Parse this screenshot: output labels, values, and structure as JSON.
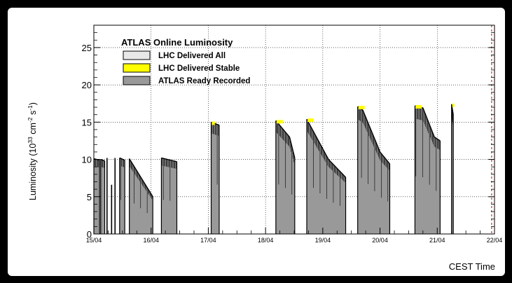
{
  "chart_data": {
    "type": "area",
    "title": "",
    "legend_title": "ATLAS Online Luminosity",
    "legend_position": "top-left",
    "xlabel": "CEST Time",
    "ylabel_main": "Luminosity (10",
    "ylabel_exp1": "33",
    "ylabel_mid": " cm",
    "ylabel_exp2": "-2",
    "ylabel_end": " s",
    "ylabel_exp3": "-1",
    "ylabel_close": ")",
    "xlim": [
      0,
      7
    ],
    "ylim": [
      0,
      28
    ],
    "yticks": [
      0,
      5,
      10,
      15,
      20,
      25
    ],
    "xtick_labels": [
      "15/04",
      "16/04",
      "17/04",
      "18/04",
      "19/04",
      "20/04",
      "21/04",
      "22/04"
    ],
    "grid": true,
    "colors": {
      "delivered_all": "#e8e8e8",
      "delivered_stable": "#ffff00",
      "ready_recorded": "#999999",
      "outline": "#000000"
    },
    "series": [
      {
        "name": "LHC Delivered All",
        "fills": []
      },
      {
        "name": "LHC Delivered Stable",
        "fills": []
      },
      {
        "name": "ATLAS Ready Recorded",
        "fills": [
          {
            "points": [
              [
                0.0,
                10.1
              ],
              [
                0.1,
                9.9
              ]
            ]
          },
          {
            "points": [
              [
                0.12,
                10.0
              ],
              [
                0.19,
                9.8
              ]
            ]
          },
          {
            "points": [
              [
                0.45,
                10.2
              ],
              [
                0.54,
                9.9
              ]
            ]
          },
          {
            "points": [
              [
                0.62,
                10.1
              ],
              [
                1.03,
                5.0
              ]
            ]
          },
          {
            "points": [
              [
                1.18,
                10.2
              ],
              [
                1.45,
                9.7
              ]
            ]
          },
          {
            "points": [
              [
                2.05,
                15.0
              ],
              [
                2.19,
                14.6
              ]
            ]
          },
          {
            "points": [
              [
                3.18,
                15.2
              ],
              [
                3.42,
                13.0
              ],
              [
                3.51,
                10.2
              ]
            ]
          },
          {
            "points": [
              [
                3.72,
                15.4
              ],
              [
                4.1,
                10.0
              ],
              [
                4.4,
                7.6
              ]
            ]
          },
          {
            "points": [
              [
                4.61,
                17.1
              ],
              [
                4.7,
                16.6
              ],
              [
                5.0,
                11.0
              ],
              [
                5.17,
                9.4
              ]
            ]
          },
          {
            "points": [
              [
                5.61,
                17.2
              ],
              [
                5.75,
                16.9
              ],
              [
                5.95,
                13.0
              ],
              [
                6.05,
                12.5
              ]
            ]
          },
          {
            "points": [
              [
                6.25,
                17.4
              ],
              [
                6.28,
                16.0
              ]
            ]
          }
        ],
        "spikes": [
          {
            "x": 0.23,
            "y": 10.2
          },
          {
            "x": 0.31,
            "y": 6.6
          },
          {
            "x": 0.37,
            "y": 10.2
          }
        ]
      }
    ],
    "vline_x": 6.95
  }
}
